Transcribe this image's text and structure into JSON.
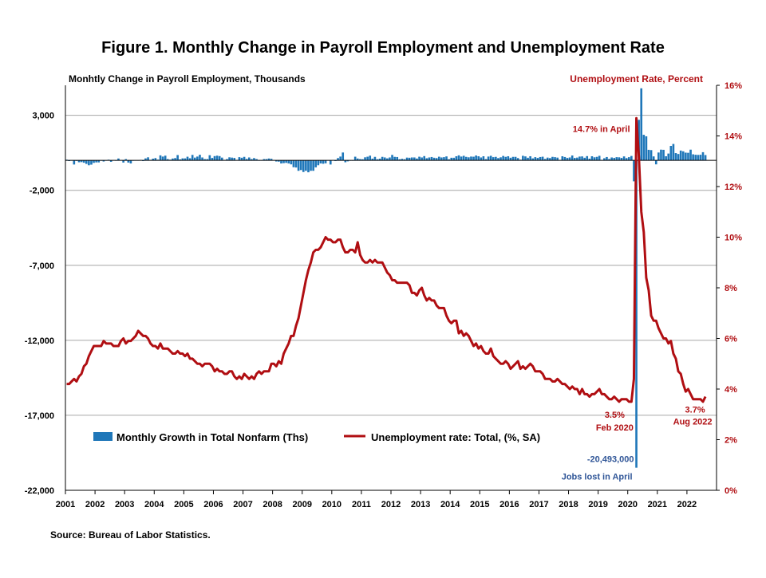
{
  "title": "Figure 1. Monthly Change in Payroll Employment and Unemployment Rate",
  "source": "Source: Bureau of Labor Statistics.",
  "colors": {
    "bars": "#1f77b9",
    "line": "#b00e12",
    "grid": "#a6a6a6",
    "left_axis_text": "#000000",
    "right_axis_text": "#b00e12",
    "annotation_blue": "#2f5597"
  },
  "chart_data": {
    "type": "bar",
    "x_tick_labels": [
      "2001",
      "2002",
      "2003",
      "2004",
      "2005",
      "2006",
      "2007",
      "2008",
      "2009",
      "2010",
      "2011",
      "2012",
      "2013",
      "2014",
      "2015",
      "2016",
      "2017",
      "2018",
      "2019",
      "2020",
      "2021",
      "2022"
    ],
    "left_axis": {
      "title": "Monhtly Change in Payroll Employment, Thousands",
      "ylim": [
        -22000,
        5000
      ],
      "ticks": [
        3000,
        -2000,
        -7000,
        -12000,
        -17000,
        -22000
      ],
      "tick_labels": [
        "3,000",
        "-2,000",
        "-7,000",
        "-12,000",
        "-17,000",
        "-22,000"
      ]
    },
    "right_axis": {
      "title": "Unemployment Rate, Percent",
      "ylim": [
        0,
        16
      ],
      "ticks": [
        0,
        2,
        4,
        6,
        8,
        10,
        12,
        14,
        16
      ],
      "tick_labels": [
        "0%",
        "2%",
        "4%",
        "6%",
        "8%",
        "10%",
        "12%",
        "14%",
        "16%"
      ]
    },
    "grid": true,
    "legend_position": "bottom-left",
    "series": [
      {
        "name": "Monthly Growth in Total Nonfarm (Ths)",
        "type": "bar",
        "axis": "left",
        "frequency": "monthly",
        "start": "2001-01",
        "end": "2022-08",
        "values_by_year": [
          [
            40,
            -50,
            -20,
            -280,
            -40,
            -130,
            -120,
            -160,
            -240,
            -330,
            -290,
            -170
          ],
          [
            -140,
            -140,
            -30,
            -80,
            -20,
            40,
            -100,
            10,
            -30,
            120,
            10,
            -150
          ],
          [
            80,
            -150,
            -210,
            -30,
            -20,
            -10,
            20,
            -50,
            130,
            200,
            20,
            110
          ],
          [
            150,
            40,
            330,
            250,
            310,
            80,
            40,
            120,
            150,
            350,
            60,
            130
          ],
          [
            130,
            240,
            140,
            360,
            180,
            250,
            370,
            190,
            80,
            80,
            340,
            160
          ],
          [
            280,
            310,
            280,
            180,
            20,
            80,
            200,
            180,
            160,
            10,
            210,
            170
          ],
          [
            230,
            90,
            190,
            80,
            150,
            80,
            -30,
            -20,
            80,
            80,
            120,
            100
          ],
          [
            10,
            -80,
            -90,
            -210,
            -190,
            -170,
            -210,
            -270,
            -460,
            -480,
            -700,
            -650
          ],
          [
            -780,
            -700,
            -800,
            -700,
            -700,
            -470,
            -330,
            -210,
            -230,
            -200,
            0,
            -280
          ],
          [
            10,
            -50,
            150,
            250,
            520,
            -130,
            -70,
            -30,
            -30,
            240,
            120,
            80
          ],
          [
            70,
            200,
            240,
            310,
            110,
            230,
            70,
            110,
            230,
            190,
            130,
            190
          ],
          [
            360,
            230,
            220,
            70,
            100,
            70,
            180,
            170,
            190,
            190,
            120,
            240
          ],
          [
            190,
            280,
            140,
            190,
            220,
            170,
            150,
            240,
            190,
            210,
            260,
            70
          ],
          [
            170,
            170,
            270,
            330,
            250,
            300,
            230,
            200,
            250,
            240,
            320,
            270
          ],
          [
            190,
            270,
            80,
            250,
            300,
            210,
            230,
            150,
            200,
            290,
            230,
            270
          ],
          [
            170,
            230,
            230,
            150,
            40,
            300,
            260,
            170,
            270,
            130,
            210,
            160
          ],
          [
            220,
            240,
            90,
            180,
            150,
            230,
            210,
            180,
            20,
            270,
            220,
            160
          ],
          [
            190,
            320,
            160,
            180,
            250,
            260,
            170,
            280,
            110,
            270,
            200,
            230
          ],
          [
            300,
            30,
            140,
            220,
            90,
            190,
            160,
            210,
            200,
            160,
            260,
            150
          ],
          [
            210,
            290,
            -1400,
            -20493,
            2700,
            4800,
            1700,
            1600,
            700,
            680,
            260,
            -270
          ],
          [
            520,
            710,
            700,
            270,
            450,
            960,
            1090,
            480,
            420,
            650,
            600,
            510
          ],
          [
            500,
            710,
            400,
            370,
            360,
            370,
            540,
            350
          ]
        ]
      },
      {
        "name": "Unemployment rate: Total, (%, SA)",
        "type": "line",
        "axis": "right",
        "frequency": "monthly",
        "start": "2001-01",
        "end": "2022-08",
        "values_by_year": [
          [
            4.2,
            4.2,
            4.3,
            4.4,
            4.3,
            4.5,
            4.6,
            4.9,
            5.0,
            5.3,
            5.5,
            5.7
          ],
          [
            5.7,
            5.7,
            5.7,
            5.9,
            5.8,
            5.8,
            5.8,
            5.7,
            5.7,
            5.7,
            5.9,
            6.0
          ],
          [
            5.8,
            5.9,
            5.9,
            6.0,
            6.1,
            6.3,
            6.2,
            6.1,
            6.1,
            6.0,
            5.8,
            5.7
          ],
          [
            5.7,
            5.6,
            5.8,
            5.6,
            5.6,
            5.6,
            5.5,
            5.4,
            5.4,
            5.5,
            5.4,
            5.4
          ],
          [
            5.3,
            5.4,
            5.2,
            5.2,
            5.1,
            5.0,
            5.0,
            4.9,
            5.0,
            5.0,
            5.0,
            4.9
          ],
          [
            4.7,
            4.8,
            4.7,
            4.7,
            4.6,
            4.6,
            4.7,
            4.7,
            4.5,
            4.4,
            4.5,
            4.4
          ],
          [
            4.6,
            4.5,
            4.4,
            4.5,
            4.4,
            4.6,
            4.7,
            4.6,
            4.7,
            4.7,
            4.7,
            5.0
          ],
          [
            5.0,
            4.9,
            5.1,
            5.0,
            5.4,
            5.6,
            5.8,
            6.1,
            6.1,
            6.5,
            6.8,
            7.3
          ],
          [
            7.8,
            8.3,
            8.7,
            9.0,
            9.4,
            9.5,
            9.5,
            9.6,
            9.8,
            10.0,
            9.9,
            9.9
          ],
          [
            9.8,
            9.8,
            9.9,
            9.9,
            9.6,
            9.4,
            9.4,
            9.5,
            9.5,
            9.4,
            9.8,
            9.3
          ],
          [
            9.1,
            9.0,
            9.0,
            9.1,
            9.0,
            9.1,
            9.0,
            9.0,
            9.0,
            8.8,
            8.6,
            8.5
          ],
          [
            8.3,
            8.3,
            8.2,
            8.2,
            8.2,
            8.2,
            8.2,
            8.1,
            7.8,
            7.8,
            7.7,
            7.9
          ],
          [
            8.0,
            7.7,
            7.5,
            7.6,
            7.5,
            7.5,
            7.3,
            7.2,
            7.2,
            7.2,
            6.9,
            6.7
          ],
          [
            6.6,
            6.7,
            6.7,
            6.2,
            6.3,
            6.1,
            6.2,
            6.1,
            5.9,
            5.7,
            5.8,
            5.6
          ],
          [
            5.7,
            5.5,
            5.4,
            5.4,
            5.6,
            5.3,
            5.2,
            5.1,
            5.0,
            5.0,
            5.1,
            5.0
          ],
          [
            4.8,
            4.9,
            5.0,
            5.1,
            4.8,
            4.9,
            4.8,
            4.9,
            5.0,
            4.9,
            4.7,
            4.7
          ],
          [
            4.7,
            4.6,
            4.4,
            4.4,
            4.4,
            4.3,
            4.3,
            4.4,
            4.3,
            4.2,
            4.2,
            4.1
          ],
          [
            4.0,
            4.1,
            4.0,
            4.0,
            3.8,
            4.0,
            3.8,
            3.8,
            3.7,
            3.8,
            3.8,
            3.9
          ],
          [
            4.0,
            3.8,
            3.8,
            3.7,
            3.6,
            3.6,
            3.7,
            3.6,
            3.5,
            3.6,
            3.6,
            3.6
          ],
          [
            3.5,
            3.5,
            4.4,
            14.7,
            13.2,
            11.0,
            10.2,
            8.4,
            7.9,
            6.9,
            6.7,
            6.7
          ],
          [
            6.4,
            6.2,
            6.0,
            6.0,
            5.8,
            5.9,
            5.4,
            5.2,
            4.7,
            4.6,
            4.2,
            3.9
          ],
          [
            4.0,
            3.8,
            3.6,
            3.6,
            3.6,
            3.6,
            3.5,
            3.7
          ]
        ]
      }
    ],
    "annotations": [
      {
        "text": "14.7% in April",
        "series": "Unemployment rate: Total, (%, SA)",
        "x": "2020-04",
        "y": 14.7
      },
      {
        "text": "3.5%",
        "series": "Unemployment rate: Total, (%, SA)",
        "x": "2020-02",
        "y": 3.5
      },
      {
        "text": "Feb 2020",
        "series": "Unemployment rate: Total, (%, SA)",
        "x": "2020-02",
        "y": 3.5
      },
      {
        "text": "3.7%",
        "series": "Unemployment rate: Total, (%, SA)",
        "x": "2022-08",
        "y": 3.7
      },
      {
        "text": "Aug 2022",
        "series": "Unemployment rate: Total, (%, SA)",
        "x": "2022-08",
        "y": 3.7
      },
      {
        "text": "-20,493,000",
        "series": "Monthly Growth in Total Nonfarm (Ths)",
        "x": "2020-04",
        "y": -20493
      },
      {
        "text": "Jobs lost in April",
        "series": "Monthly Growth in Total Nonfarm (Ths)",
        "x": "2020-04",
        "y": -20493
      }
    ]
  }
}
